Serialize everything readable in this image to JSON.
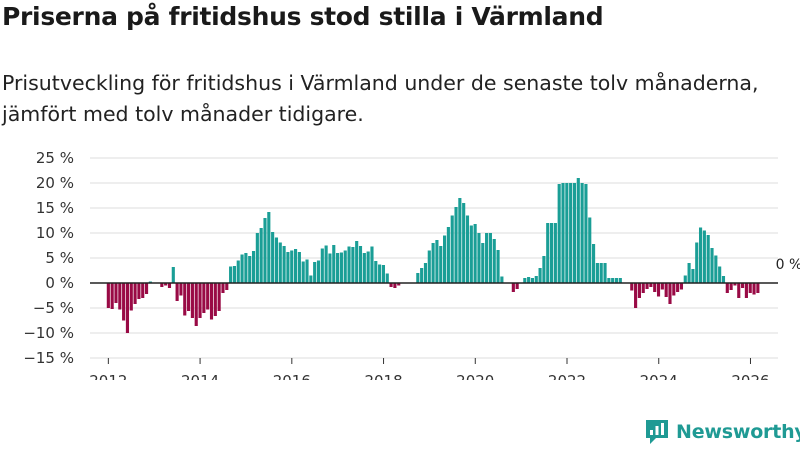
{
  "title": "Priserna på fritidshus stod stilla i Värmland",
  "subtitle": "Prisutveckling för fritidshus i Värmland under de senaste tolv månaderna, jämfört med tolv månader tidigare.",
  "brand": {
    "name": "Newsworthy"
  },
  "colors": {
    "positive": "#1a9e96",
    "negative": "#990a45",
    "grid": "#dcdcdc",
    "zero": "#222222"
  },
  "chart_data": {
    "type": "bar",
    "x_start": 2012.0,
    "x_step": 0.0833,
    "xlim": [
      2011.6,
      2026.6
    ],
    "ylim": [
      -15,
      25
    ],
    "xticks": [
      2012,
      2014,
      2016,
      2018,
      2020,
      2022,
      2024,
      2026
    ],
    "xtick_labels": [
      "2012",
      "2014",
      "2016",
      "2018",
      "2020",
      "2022",
      "2024",
      "2026"
    ],
    "yticks": [
      -15,
      -10,
      -5,
      0,
      5,
      10,
      15,
      20,
      25
    ],
    "ytick_labels": [
      "−15 %",
      "−10 %",
      "−5 %",
      "0 %",
      "5 %",
      "10 %",
      "15 %",
      "20 %",
      "25 %"
    ],
    "last_value_label": "0 %",
    "values": [
      -5,
      -5.2,
      -4,
      -5.3,
      -7.5,
      -10,
      -5.5,
      -4.2,
      -3.2,
      -3,
      -2.2,
      0.3,
      0,
      0,
      -0.8,
      -0.5,
      -1,
      3.2,
      -3.6,
      -2.5,
      -6.5,
      -5.6,
      -7,
      -8.6,
      -7,
      -6,
      -5.3,
      -7.3,
      -6.6,
      -5.6,
      -2,
      -1.4,
      3.3,
      3.4,
      4.5,
      5.7,
      6,
      5.4,
      6.4,
      10,
      11,
      13,
      14.2,
      10.2,
      9.1,
      8.1,
      7.4,
      6.2,
      6.5,
      6.8,
      6.2,
      4.3,
      4.7,
      1.5,
      4.2,
      4.5,
      6.9,
      7.5,
      5.9,
      7.6,
      6,
      6.1,
      6.5,
      7.3,
      7.2,
      8.4,
      7.4,
      6,
      6.3,
      7.3,
      4.4,
      3.7,
      3.6,
      1.9,
      -0.8,
      -1,
      -0.5,
      0,
      0,
      0,
      0,
      2,
      3,
      4,
      6.5,
      8,
      8.6,
      7.4,
      9.5,
      11.2,
      13.5,
      15.2,
      17,
      16,
      13.5,
      11.5,
      11.8,
      10,
      8,
      10,
      10,
      8.8,
      6.6,
      1.3,
      0,
      0,
      -1.8,
      -1.2,
      0,
      1,
      1.2,
      1,
      1.4,
      3,
      5.4,
      12,
      12,
      12,
      19.8,
      20,
      20,
      20,
      20,
      21,
      20,
      19.8,
      13.1,
      7.8,
      4,
      4,
      4,
      1,
      1,
      1,
      1,
      0,
      0,
      -1.5,
      -5,
      -3,
      -2,
      -1.2,
      -0.8,
      -1.8,
      -2.7,
      -1.3,
      -2.8,
      -4.2,
      -2.5,
      -1.8,
      -1.3,
      1.5,
      4,
      2.8,
      8.1,
      11.1,
      10.5,
      9.6,
      7,
      5.5,
      3.3,
      1.4,
      -2,
      -1.4,
      -0.5,
      -3,
      -1,
      -3,
      -2,
      -2.3,
      -2,
      0
    ]
  }
}
